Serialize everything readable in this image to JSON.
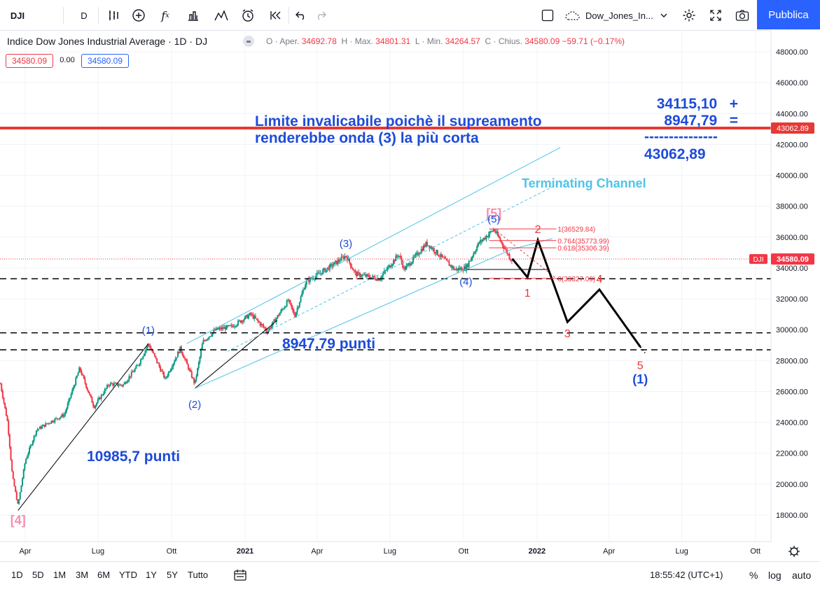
{
  "toolbar": {
    "symbol": "DJI",
    "interval": "D",
    "chart_name": "Dow_Jones_In...",
    "publish_label": "Pubblica"
  },
  "legend": {
    "title": "Indice Dow Jones Industrial Average · 1D · DJ",
    "o_label": "O · Aper.",
    "o": "34692.78",
    "h_label": "H · Max.",
    "h": "34801.31",
    "l_label": "L · Min.",
    "l": "34264.57",
    "c_label": "C · Chius.",
    "c": "34580.09",
    "change": "−59.71 (−0.17%)",
    "bid": "34580.09",
    "spread": "0.00",
    "ask": "34580.09"
  },
  "bottombar": {
    "ranges": [
      "1D",
      "5D",
      "1M",
      "3M",
      "6M",
      "YTD",
      "1Y",
      "5Y",
      "Tutto"
    ],
    "clock": "18:55:42 (UTC+1)",
    "pct": "%",
    "log": "log",
    "auto": "auto"
  },
  "colors": {
    "up": "#089981",
    "down": "#f23645",
    "accent": "#2962ff",
    "wave_blue": "#1e4bd8",
    "wave_red": "#e53935",
    "channel": "#4fc3e8",
    "limit_line": "#e53935",
    "pink": "#f48fb1"
  },
  "chart_data": {
    "type": "candlestick",
    "title": "Indice Dow Jones Industrial Average",
    "interval": "1D",
    "y_ticks": [
      18000,
      20000,
      22000,
      24000,
      26000,
      28000,
      30000,
      32000,
      34000,
      36000,
      38000,
      40000,
      42000,
      44000,
      46000,
      48000
    ],
    "y_tick_labels": [
      "18000.00",
      "20000.00",
      "22000.00",
      "24000.00",
      "26000.00",
      "28000.00",
      "30000.00",
      "32000.00",
      "34000.00",
      "36000.00",
      "38000.00",
      "40000.00",
      "42000.00",
      "44000.00",
      "46000.00",
      "48000.00"
    ],
    "x_ticks": [
      {
        "date": "2020-04-01",
        "label": "Apr"
      },
      {
        "date": "2020-07-01",
        "label": "Lug"
      },
      {
        "date": "2020-10-01",
        "label": "Ott"
      },
      {
        "date": "2021-01-01",
        "label": "2021"
      },
      {
        "date": "2021-04-01",
        "label": "Apr"
      },
      {
        "date": "2021-07-01",
        "label": "Lug"
      },
      {
        "date": "2021-10-01",
        "label": "Ott"
      },
      {
        "date": "2022-01-01",
        "label": "2022"
      },
      {
        "date": "2022-04-01",
        "label": "Apr"
      },
      {
        "date": "2022-07-01",
        "label": "Lug"
      },
      {
        "date": "2022-10-01",
        "label": "Ott"
      }
    ],
    "price_path": [
      [
        "2020-03-01",
        26500
      ],
      [
        "2020-03-10",
        24000
      ],
      [
        "2020-03-16",
        20500
      ],
      [
        "2020-03-23",
        18600
      ],
      [
        "2020-04-01",
        21500
      ],
      [
        "2020-04-15",
        23500
      ],
      [
        "2020-05-01",
        24000
      ],
      [
        "2020-05-20",
        24500
      ],
      [
        "2020-06-08",
        27500
      ],
      [
        "2020-06-26",
        25000
      ],
      [
        "2020-07-15",
        26500
      ],
      [
        "2020-08-01",
        26400
      ],
      [
        "2020-08-20",
        27700
      ],
      [
        "2020-09-02",
        29100
      ],
      [
        "2020-09-23",
        26800
      ],
      [
        "2020-10-12",
        28800
      ],
      [
        "2020-10-30",
        26500
      ],
      [
        "2020-11-09",
        29200
      ],
      [
        "2020-11-25",
        30000
      ],
      [
        "2020-12-15",
        30200
      ],
      [
        "2021-01-08",
        31000
      ],
      [
        "2021-01-29",
        29900
      ],
      [
        "2021-02-24",
        31900
      ],
      [
        "2021-03-04",
        30900
      ],
      [
        "2021-03-18",
        33100
      ],
      [
        "2021-04-15",
        34000
      ],
      [
        "2021-05-07",
        34800
      ],
      [
        "2021-05-19",
        33600
      ],
      [
        "2021-06-18",
        33300
      ],
      [
        "2021-07-12",
        34900
      ],
      [
        "2021-07-19",
        33900
      ],
      [
        "2021-08-16",
        35600
      ],
      [
        "2021-09-20",
        33900
      ],
      [
        "2021-10-04",
        34000
      ],
      [
        "2021-10-20",
        35600
      ],
      [
        "2021-11-08",
        36500
      ],
      [
        "2021-11-30",
        34500
      ],
      [
        "2021-12-01",
        34580
      ]
    ],
    "last_price": 34580.09,
    "last_price_label": "34580.09",
    "symbol_tag": "DJI",
    "limit_level": 43062.89,
    "limit_label": "43062.89",
    "horizontal_levels": [
      33300,
      29800,
      28700
    ],
    "fibonacci": [
      {
        "label": "1(36529.84)",
        "level": 36529.84
      },
      {
        "label": "0.764(35773.99)",
        "level": 35773.99
      },
      {
        "label": "0.618(35306.39)",
        "level": 35306.39
      },
      {
        "label": "0(33327.09)",
        "level": 33327.09
      }
    ],
    "projection_path": [
      [
        "2021-12-01",
        34600
      ],
      [
        "2021-12-20",
        33400
      ],
      [
        "2022-01-02",
        35800
      ],
      [
        "2022-02-08",
        30500
      ],
      [
        "2022-03-20",
        32600
      ],
      [
        "2022-05-10",
        28900
      ]
    ],
    "waves_primary": [
      {
        "label": "[4]",
        "date": "2020-03-23",
        "price": 18300
      },
      {
        "label": "[5]",
        "date": "2021-11-08",
        "price": 36900
      }
    ],
    "waves_intermediate": [
      {
        "label": "(1)",
        "date": "2020-09-02",
        "price": 29100
      },
      {
        "label": "(2)",
        "date": "2020-10-30",
        "price": 26200
      },
      {
        "label": "(3)",
        "date": "2021-05-07",
        "price": 34900
      },
      {
        "label": "(4)",
        "date": "2021-10-04",
        "price": 33800
      },
      {
        "label": "(5)",
        "date": "2021-11-08",
        "price": 36500
      },
      {
        "label": "(1)",
        "date": "2022-05-10",
        "price": 28700
      }
    ],
    "waves_minor": [
      {
        "label": "1",
        "date": "2021-12-20",
        "price": 33400
      },
      {
        "label": "2",
        "date": "2022-01-02",
        "price": 35800
      },
      {
        "label": "3",
        "date": "2022-02-08",
        "price": 30500
      },
      {
        "label": "4",
        "date": "2022-03-20",
        "price": 32600
      },
      {
        "label": "5",
        "date": "2022-05-10",
        "price": 28900
      }
    ],
    "annotations": {
      "limit_text_1": "Limite invalicabile poichè il supreamento",
      "limit_text_2": "renderebbe onda (3) la più corta",
      "calc_1": "34115,10   +",
      "calc_2": "8947,79   =",
      "calc_3": "---------------",
      "calc_4": "43062,89",
      "channel_label": "Terminating Channel",
      "wave1_points": "10985,7 punti",
      "wave3_points": "8947,79 punti"
    }
  }
}
